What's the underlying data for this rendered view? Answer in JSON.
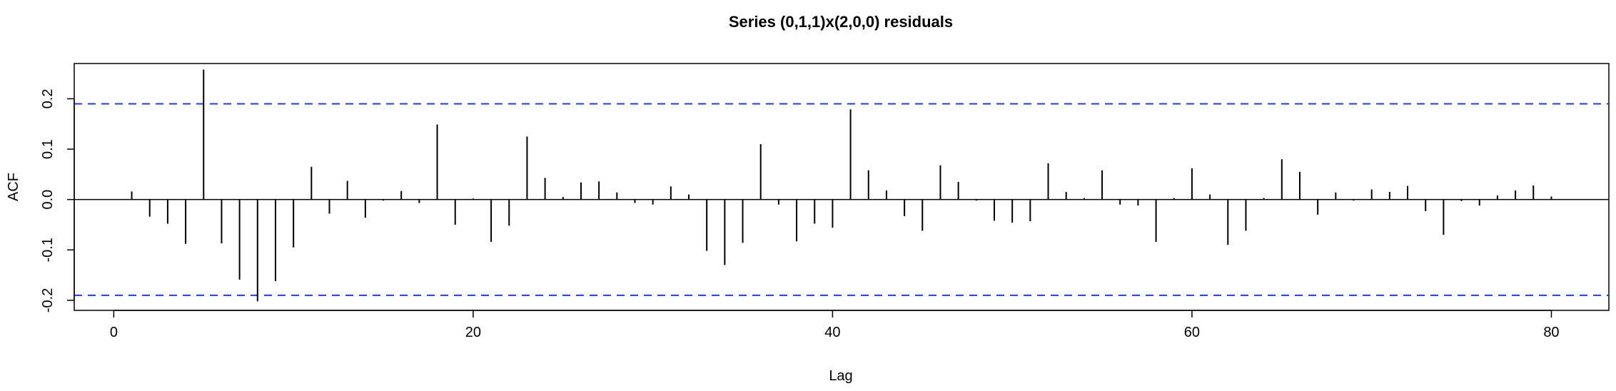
{
  "chart_data": {
    "type": "bar",
    "title": "Series (0,1,1)x(2,0,0) residuals",
    "xlabel": "Lag",
    "ylabel": "ACF",
    "xlim": [
      -2.2,
      83.2
    ],
    "ylim": [
      -0.22,
      0.27
    ],
    "x_ticks": [
      0,
      20,
      40,
      60,
      80
    ],
    "y_ticks": [
      -0.2,
      -0.1,
      0.0,
      0.1,
      0.2
    ],
    "confidence_limit": 0.19,
    "confidence_color": "#1f3de0",
    "bar_color": "#000000",
    "lags": [
      1,
      2,
      3,
      4,
      5,
      6,
      7,
      8,
      9,
      10,
      11,
      12,
      13,
      14,
      15,
      16,
      17,
      18,
      19,
      20,
      21,
      22,
      23,
      24,
      25,
      26,
      27,
      28,
      29,
      30,
      31,
      32,
      33,
      34,
      35,
      36,
      37,
      38,
      39,
      40,
      41,
      42,
      43,
      44,
      45,
      46,
      47,
      48,
      49,
      50,
      51,
      52,
      53,
      54,
      55,
      56,
      57,
      58,
      59,
      60,
      61,
      62,
      63,
      64,
      65,
      66,
      67,
      68,
      69,
      70,
      71,
      72,
      73,
      74,
      75,
      76,
      77,
      78,
      79,
      80
    ],
    "values": [
      0.016,
      -0.034,
      -0.048,
      -0.088,
      0.258,
      -0.087,
      -0.159,
      -0.202,
      -0.162,
      -0.095,
      0.065,
      -0.028,
      0.037,
      -0.036,
      -0.002,
      0.017,
      -0.007,
      0.149,
      -0.05,
      0.002,
      -0.084,
      -0.052,
      0.125,
      0.043,
      0.005,
      0.034,
      0.036,
      0.014,
      -0.007,
      -0.01,
      0.026,
      0.01,
      -0.102,
      -0.13,
      -0.086,
      0.11,
      -0.01,
      -0.083,
      -0.048,
      -0.056,
      0.179,
      0.058,
      0.018,
      -0.033,
      -0.062,
      0.068,
      0.035,
      -0.002,
      -0.042,
      -0.046,
      -0.043,
      0.072,
      0.015,
      0.003,
      0.058,
      -0.01,
      -0.012,
      -0.084,
      0.003,
      0.062,
      0.01,
      -0.09,
      -0.062,
      0.003,
      0.08,
      0.055,
      -0.03,
      0.014,
      -0.002,
      0.02,
      0.015,
      0.027,
      -0.023,
      -0.07,
      -0.003,
      -0.012,
      0.008,
      0.018,
      0.028,
      0.006
    ]
  }
}
